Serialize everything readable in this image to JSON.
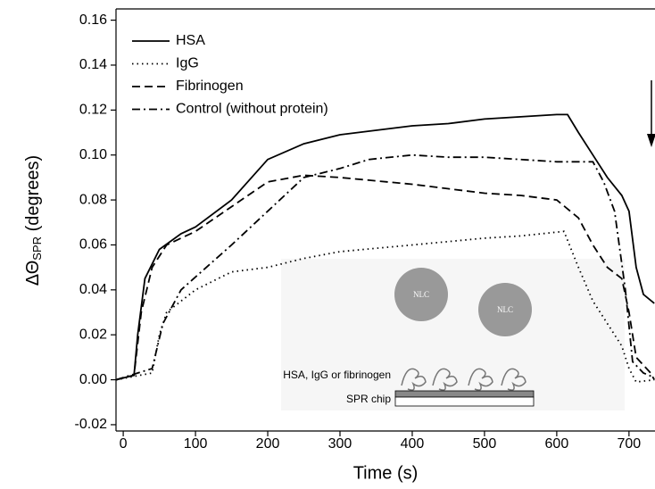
{
  "chart_data": {
    "type": "line",
    "xlabel": "Time (s)",
    "ylabel": {
      "main": "ΔΘ",
      "sub": "SPR",
      "unit": "(degrees)"
    },
    "xlim": [
      -10,
      736
    ],
    "ylim": [
      -0.0228,
      0.165
    ],
    "xticks": [
      0,
      100,
      200,
      300,
      400,
      500,
      600,
      700
    ],
    "yticks": [
      {
        "value": -0.02,
        "label": "-0.02"
      },
      {
        "value": 0,
        "label": "0.00"
      },
      {
        "value": 0.02,
        "label": "0.02"
      },
      {
        "value": 0.04,
        "label": "0.04"
      },
      {
        "value": 0.06,
        "label": "0.06"
      },
      {
        "value": 0.08,
        "label": "0.08"
      },
      {
        "value": 0.1,
        "label": "0.10"
      },
      {
        "value": 0.12,
        "label": "0.12"
      },
      {
        "value": 0.14,
        "label": "0.14"
      },
      {
        "value": 0.16,
        "label": "0.16"
      }
    ],
    "legend": "top-left",
    "series": [
      {
        "name": "HSA",
        "color": "#000000",
        "linestyle": "solid",
        "x": [
          -10,
          15,
          20,
          30,
          50,
          80,
          100,
          150,
          200,
          250,
          300,
          350,
          400,
          450,
          500,
          550,
          600,
          615,
          630,
          650,
          670,
          690,
          700,
          710,
          720,
          735
        ],
        "values": [
          0,
          0.002,
          0.02,
          0.045,
          0.058,
          0.065,
          0.068,
          0.08,
          0.098,
          0.105,
          0.109,
          0.111,
          0.113,
          0.114,
          0.116,
          0.117,
          0.118,
          0.118,
          0.11,
          0.1,
          0.09,
          0.082,
          0.075,
          0.05,
          0.038,
          0.034
        ]
      },
      {
        "name": "IgG",
        "color": "#000000",
        "linestyle": "dotted",
        "x": [
          -10,
          40,
          50,
          60,
          100,
          150,
          200,
          250,
          300,
          400,
          500,
          550,
          610,
          630,
          650,
          670,
          690,
          700,
          710,
          735
        ],
        "values": [
          0,
          0.003,
          0.02,
          0.03,
          0.04,
          0.048,
          0.05,
          0.054,
          0.057,
          0.06,
          0.063,
          0.064,
          0.066,
          0.05,
          0.035,
          0.025,
          0.015,
          0.005,
          -0.001,
          0
        ]
      },
      {
        "name": "Fibrinogen",
        "color": "#000000",
        "linestyle": "dashed",
        "x": [
          -10,
          15,
          25,
          40,
          60,
          100,
          150,
          200,
          250,
          300,
          400,
          450,
          500,
          550,
          600,
          630,
          650,
          670,
          690,
          700,
          710,
          730,
          735
        ],
        "values": [
          0,
          0.002,
          0.03,
          0.05,
          0.06,
          0.066,
          0.077,
          0.088,
          0.091,
          0.09,
          0.087,
          0.085,
          0.083,
          0.082,
          0.08,
          0.072,
          0.06,
          0.05,
          0.045,
          0.03,
          0.01,
          0.003,
          0
        ]
      },
      {
        "name": "Control (without protein)",
        "color": "#000000",
        "linestyle": "dashdot",
        "x": [
          -10,
          40,
          55,
          80,
          150,
          200,
          250,
          300,
          340,
          400,
          450,
          500,
          550,
          600,
          650,
          665,
          680,
          695,
          705,
          720,
          735
        ],
        "values": [
          0,
          0.005,
          0.025,
          0.04,
          0.06,
          0.075,
          0.09,
          0.094,
          0.098,
          0.1,
          0.099,
          0.099,
          0.098,
          0.097,
          0.097,
          0.088,
          0.075,
          0.04,
          0.008,
          0.003,
          0.001
        ]
      }
    ],
    "inset": {
      "particle_labels": [
        "NLC",
        "NLC"
      ],
      "protein_label": "HSA, IgG or fibrinogen",
      "chip_label": "SPR chip"
    }
  }
}
